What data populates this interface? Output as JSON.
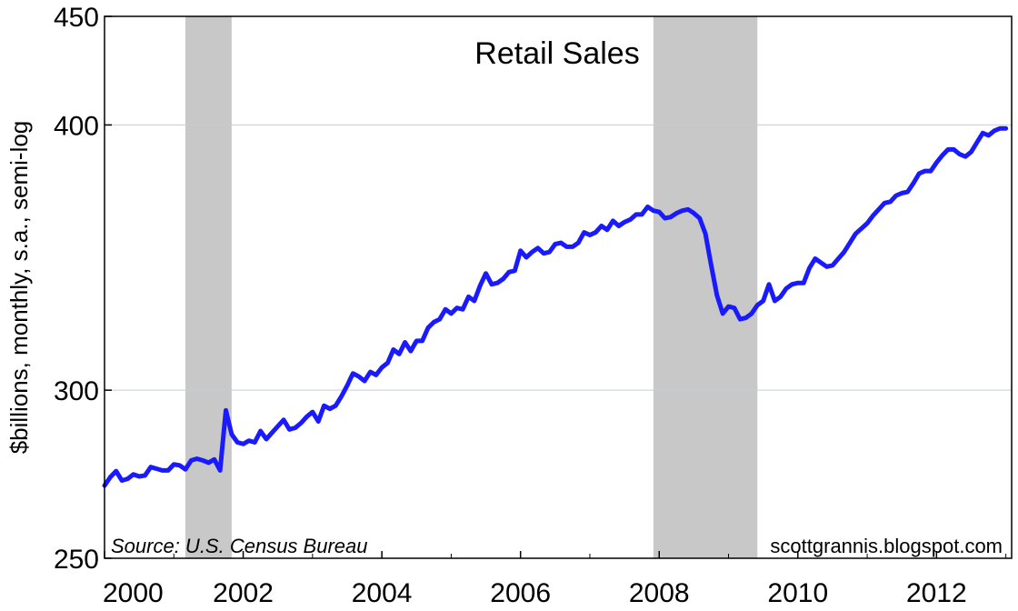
{
  "chart_data": {
    "type": "line",
    "title": "Retail Sales",
    "ylabel": "$billions, monthly, s.a., semi-log",
    "xlabel": "",
    "yscale": "log",
    "ylim": [
      250,
      450
    ],
    "xlim": [
      "2000-01",
      "2013-02"
    ],
    "yticks": [
      250,
      300,
      400,
      450
    ],
    "xticks": [
      "2000",
      "2002",
      "2004",
      "2006",
      "2008",
      "2010",
      "2012"
    ],
    "grid": "horizontal",
    "source_note": "Source: U.S. Census Bureau",
    "credit": "scottgrannis.blogspot.com",
    "line_color": "#1a1aff",
    "recession_color": "#c8c8c8",
    "recessions": [
      {
        "start": "2001-03",
        "end": "2001-11"
      },
      {
        "start": "2007-12",
        "end": "2009-06"
      }
    ],
    "series": [
      {
        "points": [
          [
            "2000-01",
            270.5
          ],
          [
            "2000-02",
            273.0
          ],
          [
            "2000-03",
            274.8
          ],
          [
            "2000-04",
            272.0
          ],
          [
            "2000-05",
            272.5
          ],
          [
            "2000-06",
            273.8
          ],
          [
            "2000-07",
            273.2
          ],
          [
            "2000-08",
            273.5
          ],
          [
            "2000-09",
            276.0
          ],
          [
            "2000-10",
            275.5
          ],
          [
            "2000-11",
            275.0
          ],
          [
            "2000-12",
            275.0
          ],
          [
            "2001-01",
            276.8
          ],
          [
            "2001-02",
            276.5
          ],
          [
            "2001-03",
            275.3
          ],
          [
            "2001-04",
            278.0
          ],
          [
            "2001-05",
            278.5
          ],
          [
            "2001-06",
            278.0
          ],
          [
            "2001-07",
            277.3
          ],
          [
            "2001-08",
            278.3
          ],
          [
            "2001-09",
            275.0
          ],
          [
            "2001-10",
            293.5
          ],
          [
            "2001-11",
            286.0
          ],
          [
            "2001-12",
            283.5
          ],
          [
            "2002-01",
            283.0
          ],
          [
            "2002-02",
            284.0
          ],
          [
            "2002-03",
            283.5
          ],
          [
            "2002-04",
            287.0
          ],
          [
            "2002-05",
            284.5
          ],
          [
            "2002-06",
            286.5
          ],
          [
            "2002-07",
            288.5
          ],
          [
            "2002-08",
            290.5
          ],
          [
            "2002-09",
            287.5
          ],
          [
            "2002-10",
            288.0
          ],
          [
            "2002-11",
            289.5
          ],
          [
            "2002-12",
            291.5
          ],
          [
            "2003-01",
            293.0
          ],
          [
            "2003-02",
            290.0
          ],
          [
            "2003-03",
            295.0
          ],
          [
            "2003-04",
            294.0
          ],
          [
            "2003-05",
            295.0
          ],
          [
            "2003-06",
            298.0
          ],
          [
            "2003-07",
            301.5
          ],
          [
            "2003-08",
            305.5
          ],
          [
            "2003-09",
            304.5
          ],
          [
            "2003-10",
            303.0
          ],
          [
            "2003-11",
            306.0
          ],
          [
            "2003-12",
            305.0
          ],
          [
            "2004-01",
            307.5
          ],
          [
            "2004-02",
            309.0
          ],
          [
            "2004-03",
            313.5
          ],
          [
            "2004-04",
            312.0
          ],
          [
            "2004-05",
            316.0
          ],
          [
            "2004-06",
            313.0
          ],
          [
            "2004-07",
            316.5
          ],
          [
            "2004-08",
            316.5
          ],
          [
            "2004-09",
            321.0
          ],
          [
            "2004-10",
            323.0
          ],
          [
            "2004-11",
            324.0
          ],
          [
            "2004-12",
            327.5
          ],
          [
            "2005-01",
            326.0
          ],
          [
            "2005-02",
            328.0
          ],
          [
            "2005-03",
            327.5
          ],
          [
            "2005-04",
            332.0
          ],
          [
            "2005-05",
            330.5
          ],
          [
            "2005-06",
            336.0
          ],
          [
            "2005-07",
            340.5
          ],
          [
            "2005-08",
            336.5
          ],
          [
            "2005-09",
            337.0
          ],
          [
            "2005-10",
            338.5
          ],
          [
            "2005-11",
            341.0
          ],
          [
            "2005-12",
            341.5
          ],
          [
            "2006-01",
            349.0
          ],
          [
            "2006-02",
            346.5
          ],
          [
            "2006-03",
            348.5
          ],
          [
            "2006-04",
            350.0
          ],
          [
            "2006-05",
            348.0
          ],
          [
            "2006-06",
            348.5
          ],
          [
            "2006-07",
            351.5
          ],
          [
            "2006-08",
            352.0
          ],
          [
            "2006-09",
            350.5
          ],
          [
            "2006-10",
            350.5
          ],
          [
            "2006-11",
            352.0
          ],
          [
            "2006-12",
            356.0
          ],
          [
            "2007-01",
            355.0
          ],
          [
            "2007-02",
            356.0
          ],
          [
            "2007-03",
            358.5
          ],
          [
            "2007-04",
            357.0
          ],
          [
            "2007-05",
            360.5
          ],
          [
            "2007-06",
            358.5
          ],
          [
            "2007-07",
            360.0
          ],
          [
            "2007-08",
            361.0
          ],
          [
            "2007-09",
            363.0
          ],
          [
            "2007-10",
            363.0
          ],
          [
            "2007-11",
            366.0
          ],
          [
            "2007-12",
            364.5
          ],
          [
            "2008-01",
            364.0
          ],
          [
            "2008-02",
            361.5
          ],
          [
            "2008-03",
            362.0
          ],
          [
            "2008-04",
            363.5
          ],
          [
            "2008-05",
            364.5
          ],
          [
            "2008-06",
            365.0
          ],
          [
            "2008-07",
            363.5
          ],
          [
            "2008-08",
            361.5
          ],
          [
            "2008-09",
            355.5
          ],
          [
            "2008-10",
            343.5
          ],
          [
            "2008-11",
            332.5
          ],
          [
            "2008-12",
            326.0
          ],
          [
            "2009-01",
            328.5
          ],
          [
            "2009-02",
            328.0
          ],
          [
            "2009-03",
            324.0
          ],
          [
            "2009-04",
            324.5
          ],
          [
            "2009-05",
            326.0
          ],
          [
            "2009-06",
            329.0
          ],
          [
            "2009-07",
            330.5
          ],
          [
            "2009-08",
            336.5
          ],
          [
            "2009-09",
            330.5
          ],
          [
            "2009-10",
            332.0
          ],
          [
            "2009-11",
            335.0
          ],
          [
            "2009-12",
            336.5
          ],
          [
            "2010-01",
            337.0
          ],
          [
            "2010-02",
            337.0
          ],
          [
            "2010-03",
            342.5
          ],
          [
            "2010-04",
            346.0
          ],
          [
            "2010-05",
            344.5
          ],
          [
            "2010-06",
            343.0
          ],
          [
            "2010-07",
            343.5
          ],
          [
            "2010-08",
            346.0
          ],
          [
            "2010-09",
            348.5
          ],
          [
            "2010-10",
            352.0
          ],
          [
            "2010-11",
            355.5
          ],
          [
            "2010-12",
            357.5
          ],
          [
            "2011-01",
            359.5
          ],
          [
            "2011-02",
            362.5
          ],
          [
            "2011-03",
            365.0
          ],
          [
            "2011-04",
            367.5
          ],
          [
            "2011-05",
            368.0
          ],
          [
            "2011-06",
            370.5
          ],
          [
            "2011-07",
            371.5
          ],
          [
            "2011-08",
            372.0
          ],
          [
            "2011-09",
            375.5
          ],
          [
            "2011-10",
            379.5
          ],
          [
            "2011-11",
            380.5
          ],
          [
            "2011-12",
            380.5
          ],
          [
            "2012-01",
            384.0
          ],
          [
            "2012-02",
            387.0
          ],
          [
            "2012-03",
            389.5
          ],
          [
            "2012-04",
            389.5
          ],
          [
            "2012-05",
            387.5
          ],
          [
            "2012-06",
            386.5
          ],
          [
            "2012-07",
            388.5
          ],
          [
            "2012-08",
            392.5
          ],
          [
            "2012-09",
            396.5
          ],
          [
            "2012-10",
            395.5
          ],
          [
            "2012-11",
            397.5
          ],
          [
            "2012-12",
            398.5
          ],
          [
            "2013-01",
            398.5
          ]
        ]
      }
    ]
  }
}
